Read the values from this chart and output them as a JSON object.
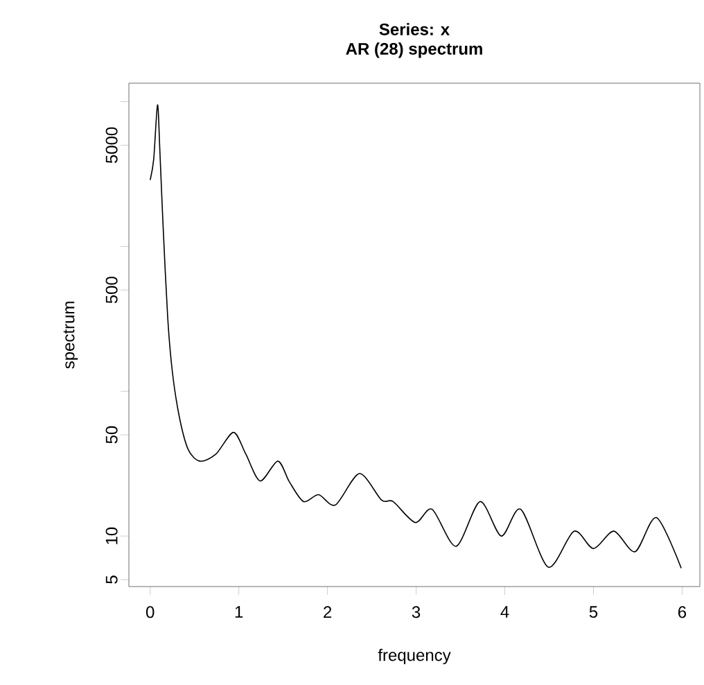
{
  "chart_data": {
    "type": "line",
    "title": "Series: x",
    "subtitle": "AR (28) spectrum",
    "xlabel": "frequency",
    "ylabel": "spectrum",
    "x": [
      0,
      0.04,
      0.083,
      0.11,
      0.145,
      0.197,
      0.25,
      0.33,
      0.43,
      0.56,
      0.74,
      0.94,
      1.08,
      1.24,
      1.44,
      1.57,
      1.73,
      1.9,
      2.09,
      2.36,
      2.61,
      2.74,
      2.99,
      3.18,
      3.45,
      3.72,
      3.96,
      4.18,
      4.49,
      4.78,
      5.0,
      5.23,
      5.47,
      5.71,
      5.99
    ],
    "values": [
      2880,
      4000,
      9500,
      4500,
      1420,
      329,
      137,
      66,
      39.5,
      32.9,
      36.7,
      52,
      36.7,
      24,
      32.9,
      23.7,
      17.3,
      19.3,
      16.4,
      27,
      17.7,
      17.3,
      12.4,
      15.3,
      8.5,
      17.3,
      10,
      15.3,
      6.1,
      10.8,
      8.2,
      10.8,
      7.8,
      13.4,
      6.0
    ],
    "color": "#000000",
    "log": "y",
    "xlim": [
      -0.24,
      6.2
    ],
    "ylim": [
      4.48,
      13400
    ],
    "xticks": [
      0,
      1,
      2,
      3,
      4,
      5,
      6
    ],
    "yticks": [
      5,
      10,
      50,
      {
        "value": 100,
        "label": null
      },
      500,
      {
        "value": 1000,
        "label": null
      },
      5000,
      {
        "value": 10000,
        "label": null
      }
    ]
  }
}
